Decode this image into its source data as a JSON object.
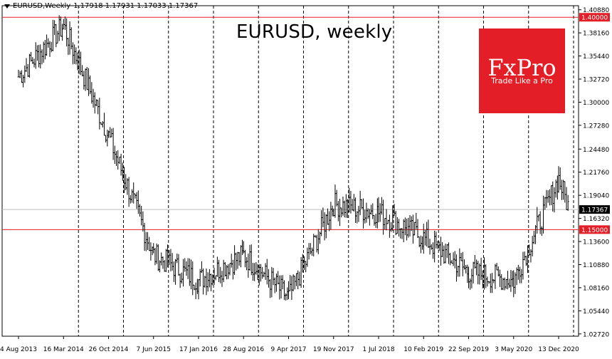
{
  "header": {
    "symbol": "EURUSD,Weekly",
    "ohlc": "1.17918 1.17931 1.17033 1.17367"
  },
  "title": "EURUSD, weekly",
  "logo": {
    "name": "FxPro",
    "slogan": "Trade Like a Pro"
  },
  "colors": {
    "background": "#ffffff",
    "bars": "#000000",
    "level_line": "#e41e26",
    "current_line": "#bdbdbd",
    "grid": "#000000",
    "logo_bg": "#e41e26"
  },
  "chart_data": {
    "type": "bar",
    "style": "ohlc-weekly",
    "ylim": [
      1.0245,
      1.4136
    ],
    "y_ticks": [
      "1.40880",
      "1.38160",
      "1.35440",
      "1.32720",
      "1.30000",
      "1.27280",
      "1.24480",
      "1.21760",
      "1.19040",
      "1.16320",
      "1.13600",
      "1.10880",
      "1.08160",
      "1.05440",
      "1.02720"
    ],
    "x_labels": [
      "4 Aug 2013",
      "16 Mar 2014",
      "26 Oct 2014",
      "7 Jun 2015",
      "17 Jan 2016",
      "28 Aug 2016",
      "9 Apr 2017",
      "19 Nov 2017",
      "1 Jul 2018",
      "10 Feb 2019",
      "22 Sep 2019",
      "3 May 2020",
      "13 Dec 2020"
    ],
    "vertical_grid": "dashed",
    "levels": [
      {
        "label": "1.40000",
        "value": 1.4,
        "kind": "resistance"
      },
      {
        "label": "1.15000",
        "value": 1.15,
        "kind": "support"
      }
    ],
    "current_price": {
      "label": "1.17367",
      "value": 1.17367
    },
    "series_anchors": [
      {
        "date": "4 Aug 2013",
        "price": 1.33
      },
      {
        "date": "16 Mar 2014",
        "price": 1.39
      },
      {
        "date": "26 Oct 2014",
        "price": 1.26
      },
      {
        "date": "7 Jun 2015",
        "price": 1.12
      },
      {
        "date": "17 Jan 2016",
        "price": 1.09
      },
      {
        "date": "28 Aug 2016",
        "price": 1.12
      },
      {
        "date": "9 Apr 2017",
        "price": 1.07
      },
      {
        "date": "19 Nov 2017",
        "price": 1.18
      },
      {
        "date": "1 Jul 2018",
        "price": 1.17
      },
      {
        "date": "10 Feb 2019",
        "price": 1.14
      },
      {
        "date": "22 Sep 2019",
        "price": 1.1
      },
      {
        "date": "3 May 2020",
        "price": 1.09
      },
      {
        "date": "13 Dec 2020",
        "price": 1.21
      },
      {
        "date": "last",
        "price": 1.17367
      }
    ]
  }
}
